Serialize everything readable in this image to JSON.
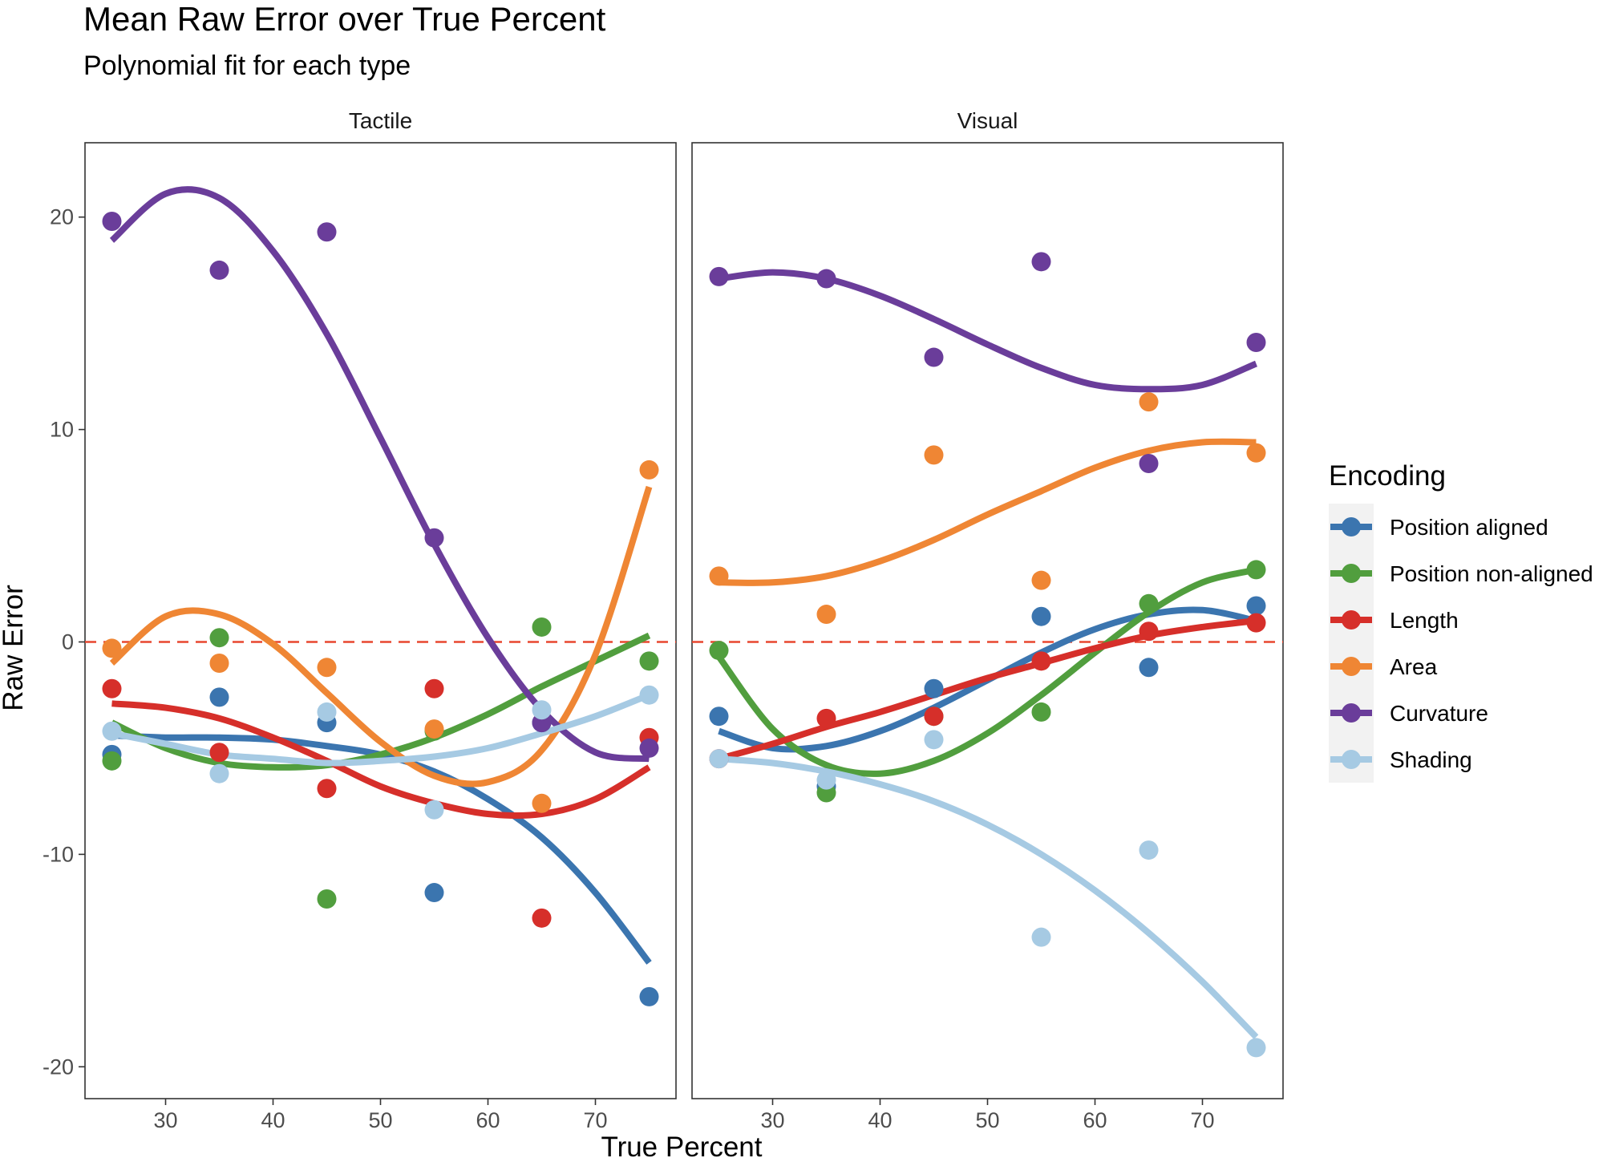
{
  "chart_data": {
    "type": "scatter",
    "title": "Mean Raw Error over True Percent",
    "subtitle": "Polynomial fit for each type",
    "xlabel": "True Percent",
    "ylabel": "Raw Error",
    "xlim": [
      22.5,
      77.5
    ],
    "ylim": [
      -21.5,
      23.5
    ],
    "xticks": [
      30,
      40,
      50,
      60,
      70
    ],
    "yticks": [
      -20,
      -10,
      0,
      10,
      20
    ],
    "reference_line": {
      "y": 0,
      "style": "dashed",
      "color": "#e8472f"
    },
    "legend": {
      "title": "Encoding",
      "position": "right"
    },
    "panels": [
      {
        "name": "Tactile",
        "series": [
          {
            "name": "Position aligned",
            "color": "#3b75af",
            "points": [
              [
                25,
                -5.3
              ],
              [
                35,
                -2.6
              ],
              [
                45,
                -3.8
              ],
              [
                55,
                -11.8
              ],
              [
                65,
                -3.8
              ],
              [
                75,
                -16.7
              ]
            ],
            "fit": [
              [
                25,
                -4.4
              ],
              [
                30,
                -4.5
              ],
              [
                35,
                -4.5
              ],
              [
                40,
                -4.6
              ],
              [
                45,
                -4.9
              ],
              [
                50,
                -5.3
              ],
              [
                55,
                -6.1
              ],
              [
                60,
                -7.4
              ],
              [
                65,
                -9.2
              ],
              [
                70,
                -11.8
              ],
              [
                75,
                -15.1
              ]
            ]
          },
          {
            "name": "Position non-aligned",
            "color": "#519e3e",
            "points": [
              [
                25,
                -5.6
              ],
              [
                35,
                0.2
              ],
              [
                45,
                -12.1
              ],
              [
                55,
                -4.2
              ],
              [
                65,
                0.7
              ],
              [
                75,
                -0.9
              ]
            ],
            "fit": [
              [
                25,
                -3.8
              ],
              [
                30,
                -5.0
              ],
              [
                35,
                -5.7
              ],
              [
                40,
                -5.9
              ],
              [
                45,
                -5.8
              ],
              [
                50,
                -5.3
              ],
              [
                55,
                -4.5
              ],
              [
                60,
                -3.4
              ],
              [
                65,
                -2.1
              ],
              [
                70,
                -0.9
              ],
              [
                75,
                0.3
              ]
            ]
          },
          {
            "name": "Length",
            "color": "#d62f2a",
            "points": [
              [
                25,
                -2.2
              ],
              [
                35,
                -5.2
              ],
              [
                45,
                -6.9
              ],
              [
                55,
                -2.2
              ],
              [
                65,
                -13.0
              ],
              [
                75,
                -4.5
              ]
            ],
            "fit": [
              [
                25,
                -2.9
              ],
              [
                30,
                -3.1
              ],
              [
                35,
                -3.6
              ],
              [
                40,
                -4.5
              ],
              [
                45,
                -5.6
              ],
              [
                50,
                -6.8
              ],
              [
                55,
                -7.6
              ],
              [
                60,
                -8.1
              ],
              [
                65,
                -8.1
              ],
              [
                70,
                -7.4
              ],
              [
                75,
                -5.9
              ]
            ]
          },
          {
            "name": "Area",
            "color": "#ef8634",
            "points": [
              [
                25,
                -0.3
              ],
              [
                35,
                -1.0
              ],
              [
                45,
                -1.2
              ],
              [
                55,
                -4.1
              ],
              [
                65,
                -7.6
              ],
              [
                75,
                8.1
              ]
            ],
            "fit": [
              [
                25,
                -1.0
              ],
              [
                30,
                1.2
              ],
              [
                35,
                1.3
              ],
              [
                40,
                -0.1
              ],
              [
                45,
                -2.4
              ],
              [
                50,
                -4.7
              ],
              [
                55,
                -6.3
              ],
              [
                60,
                -6.6
              ],
              [
                65,
                -5.1
              ],
              [
                70,
                -0.6
              ],
              [
                75,
                7.3
              ]
            ]
          },
          {
            "name": "Curvature",
            "color": "#6a3d9a",
            "points": [
              [
                25,
                19.8
              ],
              [
                35,
                17.5
              ],
              [
                45,
                19.3
              ],
              [
                55,
                4.9
              ],
              [
                65,
                -3.8
              ],
              [
                75,
                -5.0
              ]
            ],
            "fit": [
              [
                25,
                18.9
              ],
              [
                30,
                21.1
              ],
              [
                35,
                20.9
              ],
              [
                40,
                18.4
              ],
              [
                45,
                14.5
              ],
              [
                50,
                9.6
              ],
              [
                55,
                4.6
              ],
              [
                60,
                0.2
              ],
              [
                65,
                -3.2
              ],
              [
                70,
                -5.2
              ],
              [
                75,
                -5.5
              ]
            ]
          },
          {
            "name": "Shading",
            "color": "#a6cae3",
            "points": [
              [
                25,
                -4.2
              ],
              [
                35,
                -6.2
              ],
              [
                45,
                -3.3
              ],
              [
                55,
                -7.9
              ],
              [
                65,
                -3.2
              ],
              [
                75,
                -2.5
              ]
            ],
            "fit": [
              [
                25,
                -4.3
              ],
              [
                30,
                -4.8
              ],
              [
                35,
                -5.3
              ],
              [
                40,
                -5.5
              ],
              [
                45,
                -5.7
              ],
              [
                50,
                -5.6
              ],
              [
                55,
                -5.4
              ],
              [
                60,
                -5.0
              ],
              [
                65,
                -4.3
              ],
              [
                70,
                -3.5
              ],
              [
                75,
                -2.5
              ]
            ]
          }
        ]
      },
      {
        "name": "Visual",
        "series": [
          {
            "name": "Position aligned",
            "color": "#3b75af",
            "points": [
              [
                25,
                -3.5
              ],
              [
                35,
                -6.8
              ],
              [
                45,
                -2.2
              ],
              [
                55,
                1.2
              ],
              [
                65,
                -1.2
              ],
              [
                75,
                1.7
              ]
            ],
            "fit": [
              [
                25,
                -4.2
              ],
              [
                30,
                -5.0
              ],
              [
                35,
                -4.9
              ],
              [
                40,
                -4.2
              ],
              [
                45,
                -3.1
              ],
              [
                50,
                -1.8
              ],
              [
                55,
                -0.5
              ],
              [
                60,
                0.6
              ],
              [
                65,
                1.3
              ],
              [
                70,
                1.5
              ],
              [
                75,
                1.0
              ]
            ]
          },
          {
            "name": "Position non-aligned",
            "color": "#519e3e",
            "points": [
              [
                25,
                -0.4
              ],
              [
                35,
                -7.1
              ],
              [
                45,
                -3.5
              ],
              [
                55,
                -3.3
              ],
              [
                65,
                1.8
              ],
              [
                75,
                3.4
              ]
            ],
            "fit": [
              [
                25,
                -0.7
              ],
              [
                30,
                -4.1
              ],
              [
                35,
                -5.8
              ],
              [
                40,
                -6.2
              ],
              [
                45,
                -5.6
              ],
              [
                50,
                -4.3
              ],
              [
                55,
                -2.5
              ],
              [
                60,
                -0.5
              ],
              [
                65,
                1.4
              ],
              [
                70,
                2.8
              ],
              [
                75,
                3.4
              ]
            ]
          },
          {
            "name": "Length",
            "color": "#d62f2a",
            "points": [
              [
                25,
                -5.5
              ],
              [
                35,
                -3.6
              ],
              [
                45,
                -3.5
              ],
              [
                55,
                -0.9
              ],
              [
                65,
                0.5
              ],
              [
                75,
                0.9
              ]
            ],
            "fit": [
              [
                25,
                -5.5
              ],
              [
                30,
                -4.8
              ],
              [
                35,
                -4.0
              ],
              [
                40,
                -3.3
              ],
              [
                45,
                -2.5
              ],
              [
                50,
                -1.7
              ],
              [
                55,
                -1.0
              ],
              [
                60,
                -0.3
              ],
              [
                65,
                0.3
              ],
              [
                70,
                0.7
              ],
              [
                75,
                1.0
              ]
            ]
          },
          {
            "name": "Area",
            "color": "#ef8634",
            "points": [
              [
                25,
                3.1
              ],
              [
                35,
                1.3
              ],
              [
                45,
                8.8
              ],
              [
                55,
                2.9
              ],
              [
                65,
                11.3
              ],
              [
                75,
                8.9
              ]
            ],
            "fit": [
              [
                25,
                2.8
              ],
              [
                30,
                2.8
              ],
              [
                35,
                3.1
              ],
              [
                40,
                3.8
              ],
              [
                45,
                4.8
              ],
              [
                50,
                6.0
              ],
              [
                55,
                7.1
              ],
              [
                60,
                8.2
              ],
              [
                65,
                9.0
              ],
              [
                70,
                9.4
              ],
              [
                75,
                9.4
              ]
            ]
          },
          {
            "name": "Curvature",
            "color": "#6a3d9a",
            "points": [
              [
                25,
                17.2
              ],
              [
                35,
                17.1
              ],
              [
                45,
                13.4
              ],
              [
                55,
                17.9
              ],
              [
                65,
                8.4
              ],
              [
                75,
                14.1
              ]
            ],
            "fit": [
              [
                25,
                17.1
              ],
              [
                30,
                17.4
              ],
              [
                35,
                17.1
              ],
              [
                40,
                16.3
              ],
              [
                45,
                15.2
              ],
              [
                50,
                14.0
              ],
              [
                55,
                12.9
              ],
              [
                60,
                12.1
              ],
              [
                65,
                11.9
              ],
              [
                70,
                12.1
              ],
              [
                75,
                13.1
              ]
            ]
          },
          {
            "name": "Shading",
            "color": "#a6cae3",
            "points": [
              [
                25,
                -5.5
              ],
              [
                35,
                -6.5
              ],
              [
                45,
                -4.6
              ],
              [
                55,
                -13.9
              ],
              [
                65,
                -9.8
              ],
              [
                75,
                -19.1
              ]
            ],
            "fit": [
              [
                25,
                -5.5
              ],
              [
                30,
                -5.7
              ],
              [
                35,
                -6.1
              ],
              [
                40,
                -6.7
              ],
              [
                45,
                -7.5
              ],
              [
                50,
                -8.6
              ],
              [
                55,
                -10.0
              ],
              [
                60,
                -11.7
              ],
              [
                65,
                -13.7
              ],
              [
                70,
                -16.0
              ],
              [
                75,
                -18.6
              ]
            ]
          }
        ]
      }
    ]
  }
}
